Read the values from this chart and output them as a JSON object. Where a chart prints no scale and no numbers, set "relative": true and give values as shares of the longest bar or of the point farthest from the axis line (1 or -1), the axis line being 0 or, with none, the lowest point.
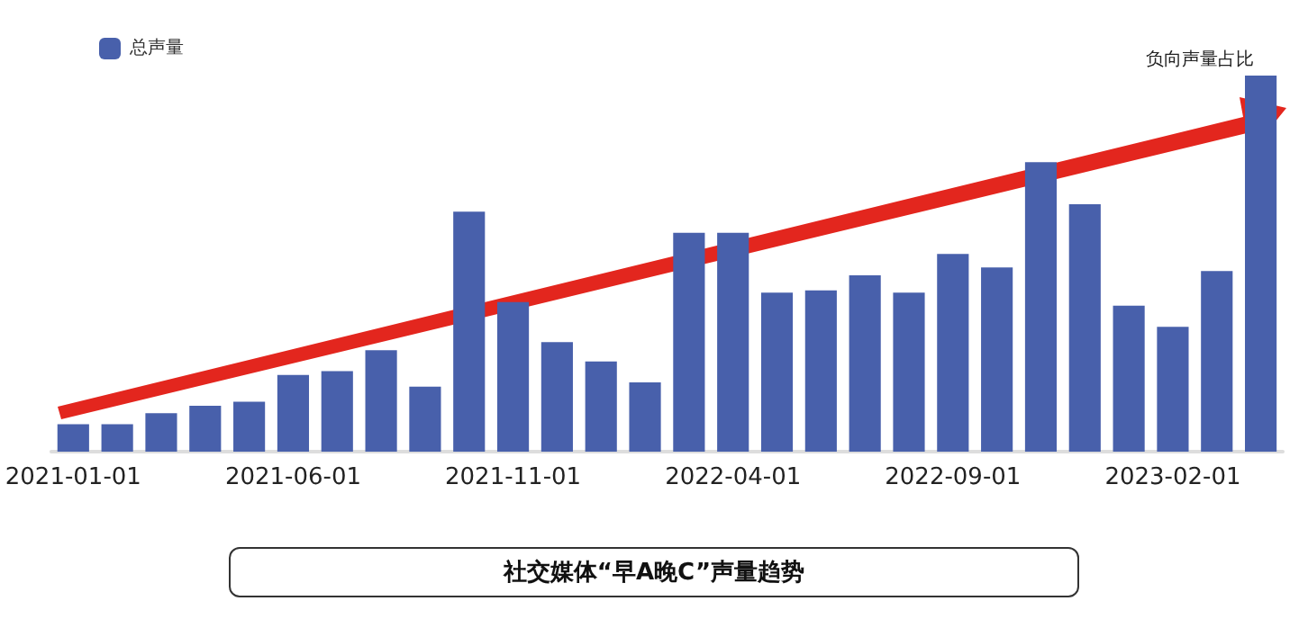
{
  "chart_data": {
    "type": "bar",
    "relative": true,
    "title": "社交媒体“早A晚C”声量趋势",
    "annotations": [
      "负向声量占比"
    ],
    "legend": "top left",
    "categories": [
      "2021-01-01",
      null,
      null,
      null,
      null,
      "2021-06-01",
      null,
      null,
      null,
      null,
      "2021-11-01",
      null,
      null,
      null,
      null,
      "2022-04-01",
      null,
      null,
      null,
      null,
      "2022-09-01",
      null,
      null,
      null,
      null,
      "2023-02-01",
      null,
      null
    ],
    "series": [
      {
        "name": "总声量",
        "color": "#4860ab",
        "values": [
          0.073,
          0.073,
          0.102,
          0.122,
          0.133,
          0.204,
          0.214,
          0.27,
          0.173,
          0.638,
          0.398,
          0.291,
          0.24,
          0.184,
          0.582,
          0.582,
          0.423,
          0.429,
          0.469,
          0.423,
          0.526,
          0.49,
          0.77,
          0.658,
          0.388,
          0.332,
          0.48,
          1
        ]
      }
    ]
  }
}
